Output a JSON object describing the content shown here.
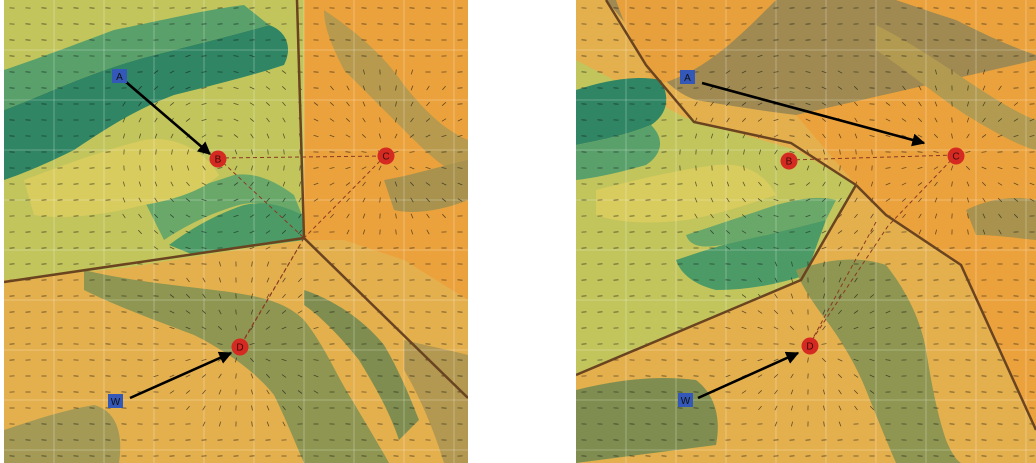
{
  "colors": {
    "deep_green": "#2f8564",
    "green": "#5aa06a",
    "yellow_green": "#b8c25a",
    "yellow": "#d4c456",
    "tan": "#e0b24e",
    "orange": "#eca23c",
    "olive": "#8e9652",
    "brown_olive": "#a08a52",
    "boundary": "#6a4420",
    "dashed": "#8a3a22",
    "node_red": "#d42a22",
    "node_blue": "#3458b8",
    "arrow": "#000000",
    "grid": "#ffffff"
  },
  "panels": [
    {
      "nodes": [
        {
          "label": "A",
          "kind": "blue"
        },
        {
          "label": "B",
          "kind": "red"
        },
        {
          "label": "C",
          "kind": "red"
        },
        {
          "label": "D",
          "kind": "red"
        },
        {
          "label": "W",
          "kind": "blue"
        }
      ]
    },
    {
      "nodes": [
        {
          "label": "A",
          "kind": "blue"
        },
        {
          "label": "B",
          "kind": "red"
        },
        {
          "label": "C",
          "kind": "red"
        },
        {
          "label": "D",
          "kind": "red"
        },
        {
          "label": "W",
          "kind": "blue"
        }
      ]
    }
  ]
}
